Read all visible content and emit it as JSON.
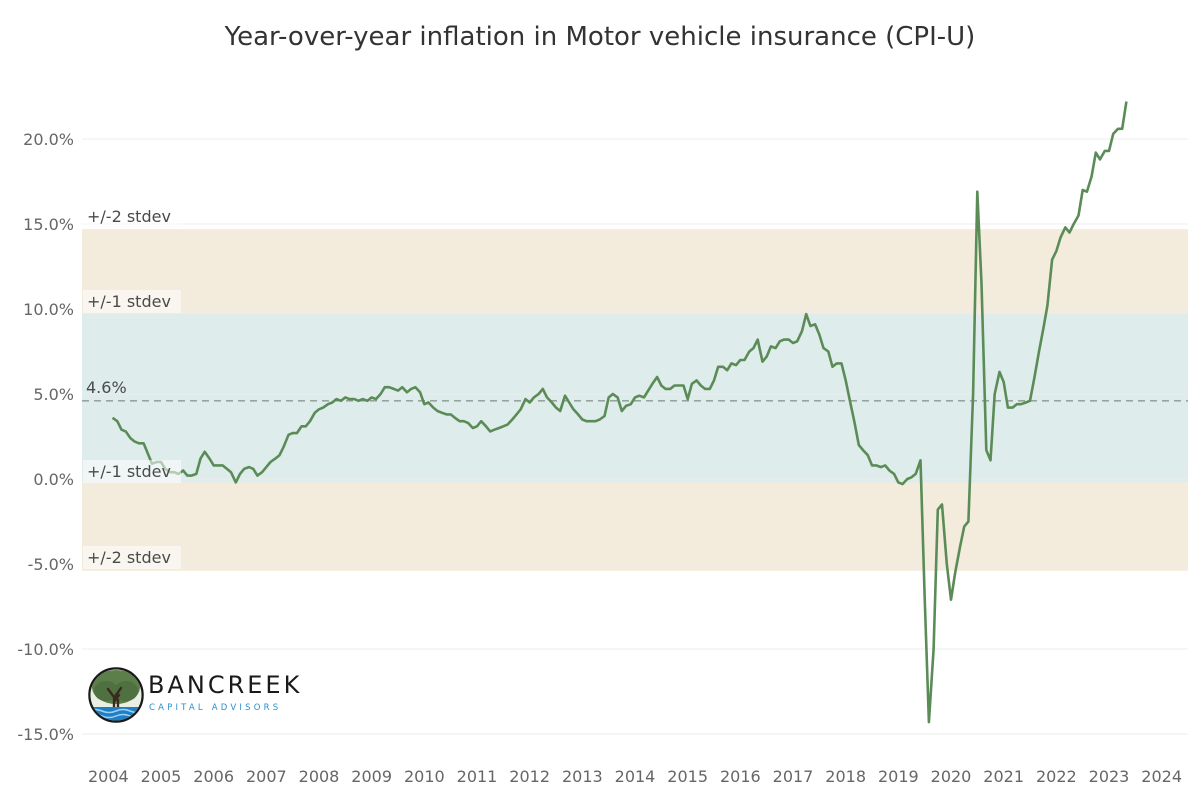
{
  "chart_data": {
    "type": "line",
    "title": "Year-over-year inflation in Motor vehicle insurance (CPI-U)",
    "xlabel": "",
    "ylabel": "",
    "x_tick_labels": [
      "2004",
      "2005",
      "2006",
      "2007",
      "2008",
      "2009",
      "2010",
      "2011",
      "2012",
      "2013",
      "2014",
      "2015",
      "2016",
      "2017",
      "2018",
      "2019",
      "2020",
      "2021",
      "2022",
      "2023",
      "2024"
    ],
    "y_tick_labels": [
      "20.0%",
      "15.0%",
      "10.0%",
      "5.0%",
      "0.0%",
      "-5.0%",
      "-10.0%",
      "-15.0%"
    ],
    "xlim": [
      2004,
      2025
    ],
    "ylim": [
      -15.5,
      23.5
    ],
    "y_ticks": [
      20,
      15,
      10,
      5,
      0,
      -5,
      -10,
      -15
    ],
    "grid": "horizontal",
    "mean": {
      "value": 4.6,
      "label": "4.6%"
    },
    "bands": [
      {
        "label": "+/-2 stdev",
        "from": -5.4,
        "to": 14.7,
        "color": "#f3ebdc"
      },
      {
        "label": "+/-1 stdev",
        "from": -0.2,
        "to": 9.7,
        "color": "#deeceb"
      }
    ],
    "band_labels": {
      "upper_2": "+/-2 stdev",
      "upper_1": "+/-1 stdev",
      "lower_1": "+/-1 stdev",
      "lower_2": "+/-2 stdev"
    },
    "series": [
      {
        "color": "#5b8c57",
        "points": [
          [
            2004.58,
            3.6
          ],
          [
            2004.67,
            3.4
          ],
          [
            2004.75,
            2.9
          ],
          [
            2004.83,
            2.8
          ],
          [
            2004.92,
            2.4
          ],
          [
            2005.0,
            2.2
          ],
          [
            2005.08,
            2.1
          ],
          [
            2005.17,
            2.1
          ],
          [
            2005.25,
            1.5
          ],
          [
            2005.33,
            0.9
          ],
          [
            2005.42,
            1.0
          ],
          [
            2005.5,
            1.0
          ],
          [
            2005.58,
            0.6
          ],
          [
            2005.67,
            0.4
          ],
          [
            2005.75,
            0.4
          ],
          [
            2005.83,
            0.3
          ],
          [
            2005.92,
            0.5
          ],
          [
            2006.0,
            0.2
          ],
          [
            2006.08,
            0.2
          ],
          [
            2006.17,
            0.3
          ],
          [
            2006.25,
            1.2
          ],
          [
            2006.33,
            1.6
          ],
          [
            2006.42,
            1.2
          ],
          [
            2006.5,
            0.8
          ],
          [
            2006.58,
            0.8
          ],
          [
            2006.67,
            0.8
          ],
          [
            2006.75,
            0.6
          ],
          [
            2006.83,
            0.4
          ],
          [
            2006.92,
            -0.2
          ],
          [
            2007.0,
            0.3
          ],
          [
            2007.08,
            0.6
          ],
          [
            2007.17,
            0.7
          ],
          [
            2007.25,
            0.6
          ],
          [
            2007.33,
            0.2
          ],
          [
            2007.42,
            0.4
          ],
          [
            2007.5,
            0.7
          ],
          [
            2007.58,
            1.0
          ],
          [
            2007.67,
            1.2
          ],
          [
            2007.75,
            1.4
          ],
          [
            2007.83,
            1.9
          ],
          [
            2007.92,
            2.6
          ],
          [
            2008.0,
            2.7
          ],
          [
            2008.08,
            2.7
          ],
          [
            2008.17,
            3.1
          ],
          [
            2008.25,
            3.1
          ],
          [
            2008.33,
            3.4
          ],
          [
            2008.42,
            3.9
          ],
          [
            2008.5,
            4.1
          ],
          [
            2008.58,
            4.2
          ],
          [
            2008.67,
            4.4
          ],
          [
            2008.75,
            4.5
          ],
          [
            2008.83,
            4.7
          ],
          [
            2008.92,
            4.6
          ],
          [
            2009.0,
            4.8
          ],
          [
            2009.08,
            4.7
          ],
          [
            2009.17,
            4.7
          ],
          [
            2009.25,
            4.6
          ],
          [
            2009.33,
            4.7
          ],
          [
            2009.42,
            4.6
          ],
          [
            2009.5,
            4.8
          ],
          [
            2009.58,
            4.7
          ],
          [
            2009.67,
            5.0
          ],
          [
            2009.75,
            5.4
          ],
          [
            2009.83,
            5.4
          ],
          [
            2009.92,
            5.3
          ],
          [
            2010.0,
            5.2
          ],
          [
            2010.08,
            5.4
          ],
          [
            2010.17,
            5.1
          ],
          [
            2010.25,
            5.3
          ],
          [
            2010.33,
            5.4
          ],
          [
            2010.42,
            5.1
          ],
          [
            2010.5,
            4.4
          ],
          [
            2010.58,
            4.5
          ],
          [
            2010.67,
            4.2
          ],
          [
            2010.75,
            4.0
          ],
          [
            2010.83,
            3.9
          ],
          [
            2010.92,
            3.8
          ],
          [
            2011.0,
            3.8
          ],
          [
            2011.08,
            3.6
          ],
          [
            2011.17,
            3.4
          ],
          [
            2011.25,
            3.4
          ],
          [
            2011.33,
            3.3
          ],
          [
            2011.42,
            3.0
          ],
          [
            2011.5,
            3.1
          ],
          [
            2011.58,
            3.4
          ],
          [
            2011.67,
            3.1
          ],
          [
            2011.75,
            2.8
          ],
          [
            2011.83,
            2.9
          ],
          [
            2011.92,
            3.0
          ],
          [
            2012.0,
            3.1
          ],
          [
            2012.08,
            3.2
          ],
          [
            2012.17,
            3.5
          ],
          [
            2012.25,
            3.8
          ],
          [
            2012.33,
            4.1
          ],
          [
            2012.42,
            4.7
          ],
          [
            2012.5,
            4.5
          ],
          [
            2012.58,
            4.8
          ],
          [
            2012.67,
            5.0
          ],
          [
            2012.75,
            5.3
          ],
          [
            2012.83,
            4.8
          ],
          [
            2012.92,
            4.5
          ],
          [
            2013.0,
            4.2
          ],
          [
            2013.08,
            4.0
          ],
          [
            2013.17,
            4.9
          ],
          [
            2013.25,
            4.5
          ],
          [
            2013.33,
            4.1
          ],
          [
            2013.42,
            3.8
          ],
          [
            2013.5,
            3.5
          ],
          [
            2013.58,
            3.4
          ],
          [
            2013.67,
            3.4
          ],
          [
            2013.75,
            3.4
          ],
          [
            2013.83,
            3.5
          ],
          [
            2013.92,
            3.7
          ],
          [
            2014.0,
            4.8
          ],
          [
            2014.08,
            5.0
          ],
          [
            2014.17,
            4.8
          ],
          [
            2014.25,
            4.0
          ],
          [
            2014.33,
            4.3
          ],
          [
            2014.42,
            4.4
          ],
          [
            2014.5,
            4.8
          ],
          [
            2014.58,
            4.9
          ],
          [
            2014.67,
            4.8
          ],
          [
            2014.75,
            5.2
          ],
          [
            2014.83,
            5.6
          ],
          [
            2014.92,
            6.0
          ],
          [
            2015.0,
            5.5
          ],
          [
            2015.08,
            5.3
          ],
          [
            2015.17,
            5.3
          ],
          [
            2015.25,
            5.5
          ],
          [
            2015.33,
            5.5
          ],
          [
            2015.42,
            5.5
          ],
          [
            2015.5,
            4.7
          ],
          [
            2015.58,
            5.6
          ],
          [
            2015.67,
            5.8
          ],
          [
            2015.75,
            5.5
          ],
          [
            2015.83,
            5.3
          ],
          [
            2015.92,
            5.3
          ],
          [
            2016.0,
            5.8
          ],
          [
            2016.08,
            6.6
          ],
          [
            2016.17,
            6.6
          ],
          [
            2016.25,
            6.4
          ],
          [
            2016.33,
            6.8
          ],
          [
            2016.42,
            6.7
          ],
          [
            2016.5,
            7.0
          ],
          [
            2016.58,
            7.0
          ],
          [
            2016.67,
            7.5
          ],
          [
            2016.75,
            7.7
          ],
          [
            2016.83,
            8.2
          ],
          [
            2016.92,
            6.9
          ],
          [
            2017.0,
            7.2
          ],
          [
            2017.08,
            7.8
          ],
          [
            2017.17,
            7.7
          ],
          [
            2017.25,
            8.1
          ],
          [
            2017.33,
            8.2
          ],
          [
            2017.42,
            8.2
          ],
          [
            2017.5,
            8.0
          ],
          [
            2017.58,
            8.1
          ],
          [
            2017.67,
            8.7
          ],
          [
            2017.75,
            9.7
          ],
          [
            2017.83,
            9.0
          ],
          [
            2017.92,
            9.1
          ],
          [
            2018.0,
            8.5
          ],
          [
            2018.08,
            7.7
          ],
          [
            2018.17,
            7.5
          ],
          [
            2018.25,
            6.6
          ],
          [
            2018.33,
            6.8
          ],
          [
            2018.42,
            6.8
          ],
          [
            2018.5,
            5.8
          ],
          [
            2018.58,
            4.6
          ],
          [
            2018.67,
            3.3
          ],
          [
            2018.75,
            2.0
          ],
          [
            2018.83,
            1.7
          ],
          [
            2018.92,
            1.4
          ],
          [
            2019.0,
            0.8
          ],
          [
            2019.08,
            0.8
          ],
          [
            2019.17,
            0.7
          ],
          [
            2019.25,
            0.8
          ],
          [
            2019.33,
            0.5
          ],
          [
            2019.42,
            0.3
          ],
          [
            2019.5,
            -0.2
          ],
          [
            2019.58,
            -0.3
          ],
          [
            2019.67,
            0.0
          ],
          [
            2019.75,
            0.1
          ],
          [
            2019.83,
            0.3
          ],
          [
            2019.92,
            1.1
          ],
          [
            2020.0,
            -7.0
          ],
          [
            2020.08,
            -14.3
          ],
          [
            2020.17,
            -10.0
          ],
          [
            2020.25,
            -1.8
          ],
          [
            2020.33,
            -1.5
          ],
          [
            2020.42,
            -5.0
          ],
          [
            2020.5,
            -7.1
          ],
          [
            2020.58,
            -5.5
          ],
          [
            2020.67,
            -4.0
          ],
          [
            2020.75,
            -2.8
          ],
          [
            2020.83,
            -2.5
          ],
          [
            2020.92,
            5.0
          ],
          [
            2021.0,
            16.9
          ],
          [
            2021.08,
            11.5
          ],
          [
            2021.17,
            1.7
          ],
          [
            2021.25,
            1.1
          ],
          [
            2021.33,
            5.0
          ],
          [
            2021.42,
            6.3
          ],
          [
            2021.5,
            5.7
          ],
          [
            2021.58,
            4.2
          ],
          [
            2021.67,
            4.2
          ],
          [
            2021.75,
            4.4
          ],
          [
            2021.83,
            4.4
          ],
          [
            2021.92,
            4.5
          ],
          [
            2022.0,
            4.6
          ],
          [
            2022.08,
            5.9
          ],
          [
            2022.17,
            7.5
          ],
          [
            2022.25,
            8.8
          ],
          [
            2022.33,
            10.2
          ],
          [
            2022.42,
            12.9
          ],
          [
            2022.5,
            13.4
          ],
          [
            2022.58,
            14.2
          ],
          [
            2022.67,
            14.8
          ],
          [
            2022.75,
            14.5
          ],
          [
            2022.83,
            15.0
          ],
          [
            2022.92,
            15.5
          ],
          [
            2023.0,
            17.0
          ],
          [
            2023.08,
            16.9
          ],
          [
            2023.17,
            17.8
          ],
          [
            2023.25,
            19.2
          ],
          [
            2023.33,
            18.8
          ],
          [
            2023.42,
            19.3
          ],
          [
            2023.5,
            19.3
          ],
          [
            2023.58,
            20.3
          ],
          [
            2023.67,
            20.6
          ],
          [
            2023.75,
            20.6
          ],
          [
            2023.83,
            22.2
          ]
        ]
      }
    ]
  },
  "logo": {
    "name": "BANCREEK",
    "tagline": "CAPITAL ADVISORS",
    "colors": {
      "tree": "#5c7f4a",
      "water": "#1f7fc6",
      "ring": "#1a1a1a"
    }
  }
}
